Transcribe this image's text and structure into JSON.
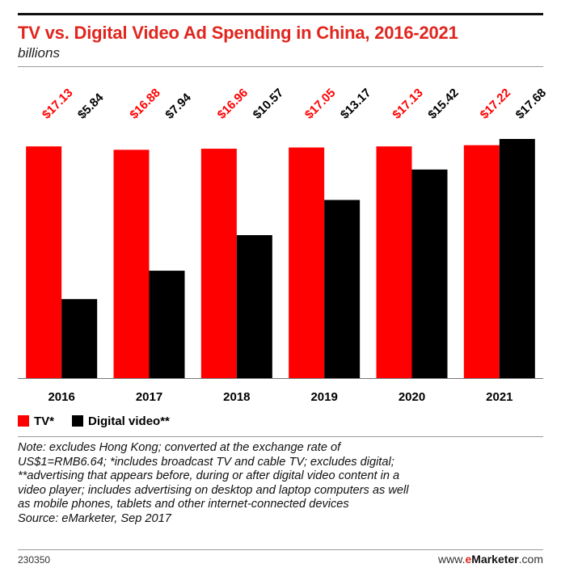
{
  "header": {
    "title": "TV vs. Digital Video Ad Spending in China, 2016-2021",
    "subtitle": "billions"
  },
  "colors": {
    "tv": "#ff0000",
    "digital": "#000000",
    "title": "#e0261e"
  },
  "chart_data": {
    "type": "bar",
    "categories": [
      "2016",
      "2017",
      "2018",
      "2019",
      "2020",
      "2021"
    ],
    "series": [
      {
        "name": "TV*",
        "values": [
          17.13,
          16.88,
          16.96,
          17.05,
          17.13,
          17.22
        ],
        "labels": [
          "$17.13",
          "$16.88",
          "$16.96",
          "$17.05",
          "$17.13",
          "$17.22"
        ]
      },
      {
        "name": "Digital video**",
        "values": [
          5.84,
          7.94,
          10.57,
          13.17,
          15.42,
          17.68
        ],
        "labels": [
          "$5.84",
          "$7.94",
          "$10.57",
          "$13.17",
          "$15.42",
          "$17.68"
        ]
      }
    ],
    "ylim": [
      0,
      17.68
    ],
    "grid": false,
    "legend": "bottom-left"
  },
  "legend": {
    "tv": "TV*",
    "digital": "Digital video**"
  },
  "note": {
    "lines": [
      "Note: excludes Hong Kong; converted at the exchange rate of",
      "US$1=RMB6.64; *includes broadcast TV and cable TV; excludes digital;",
      "**advertising that appears before, during or after digital video content in a",
      "video player; includes advertising on desktop and laptop computers as well",
      "as mobile phones, tablets and other internet-connected devices",
      "Source: eMarketer, Sep 2017"
    ]
  },
  "footer": {
    "id": "230350",
    "brand_prefix": "www.",
    "brand_e": "e",
    "brand_main": "Marketer",
    "brand_suffix": ".com"
  }
}
